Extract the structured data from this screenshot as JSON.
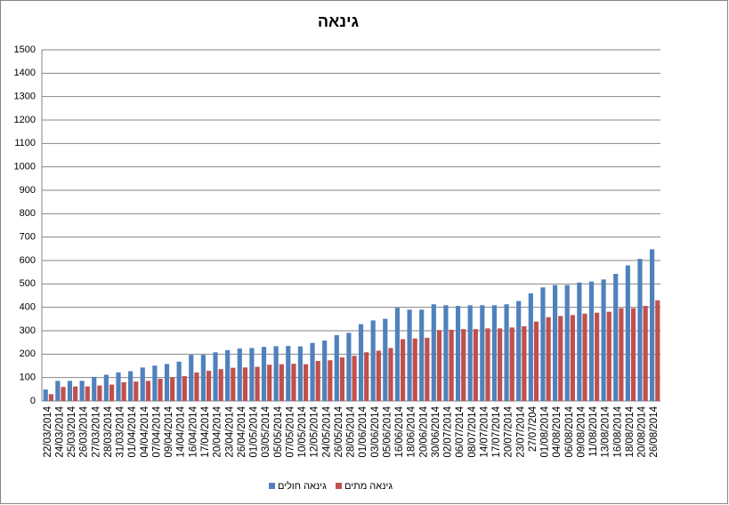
{
  "chart_data": {
    "type": "bar",
    "title": "גינאה",
    "categories": [
      "22/03/2014",
      "24/03/2014",
      "25/03/2014",
      "26/03/2014",
      "27/03/2014",
      "28/03/2014",
      "31/03/2014",
      "01/04/2014",
      "04/04/2014",
      "07/04/2014",
      "09/04/2014",
      "14/04/2014",
      "16/04/2014",
      "17/04/2014",
      "20/04/2014",
      "23/04/2014",
      "26/04/2014",
      "01/05/2014",
      "03/05/2014",
      "05/05/2014",
      "07/05/2014",
      "10/05/2014",
      "12/05/2014",
      "24/05/2014",
      "26/05/2014",
      "28/05/2014",
      "01/06/2014",
      "03/06/2014",
      "05/06/2014",
      "16/06/2014",
      "18/06/2014",
      "20/06/2014",
      "30/06/2014",
      "02/07/2014",
      "06/07/2014",
      "08/07/2014",
      "14/07/2014",
      "17/07/2014",
      "20/07/2014",
      "23/07/2014",
      "27/07/204",
      "01/08/2014",
      "04/08/2014",
      "06/08/2014",
      "09/08/2014",
      "11/08/2014",
      "13/08/2014",
      "16/08/2014",
      "18/08/2014",
      "20/08/2014",
      "26/08/2014"
    ],
    "series": [
      {
        "name": "גינאה חולים",
        "color": "#4f81bd",
        "values": [
          49,
          86,
          86,
          86,
          103,
          112,
          122,
          127,
          143,
          151,
          158,
          168,
          197,
          197,
          208,
          217,
          224,
          226,
          231,
          234,
          235,
          233,
          248,
          258,
          281,
          291,
          328,
          344,
          351,
          398,
          390,
          390,
          413,
          409,
          406,
          409,
          409,
          409,
          413,
          427,
          460,
          485,
          495,
          495,
          506,
          510,
          519,
          543,
          579,
          607,
          648
        ]
      },
      {
        "name": "גינאה מתים",
        "color": "#c0504d",
        "values": [
          29,
          60,
          62,
          62,
          66,
          70,
          80,
          83,
          86,
          95,
          101,
          106,
          122,
          129,
          136,
          142,
          143,
          146,
          155,
          157,
          159,
          157,
          171,
          174,
          186,
          193,
          208,
          215,
          226,
          264,
          267,
          270,
          303,
          304,
          307,
          307,
          310,
          310,
          314,
          319,
          339,
          358,
          363,
          367,
          373,
          377,
          381,
          396,
          396,
          406,
          430
        ]
      }
    ],
    "ylim": [
      0,
      1500
    ],
    "yticks": [
      0,
      100,
      200,
      300,
      400,
      500,
      600,
      700,
      800,
      900,
      1000,
      1100,
      1200,
      1300,
      1400,
      1500
    ],
    "grid": true,
    "legend": "bottom"
  }
}
